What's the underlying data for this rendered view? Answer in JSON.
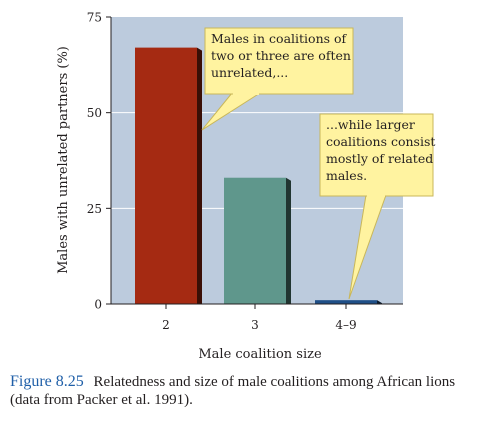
{
  "chart_data": {
    "type": "bar",
    "categories": [
      "2",
      "3",
      "4–9"
    ],
    "values": [
      67,
      33,
      1
    ],
    "ylabel": "Males with unrelated partners (%)",
    "xlabel": "Male coalition size",
    "ylim": [
      0,
      75
    ],
    "yticks": [
      "0",
      "25",
      "50",
      "75"
    ],
    "grid": true,
    "colors": [
      "#a52a12",
      "#5f978c",
      "#1f4f87"
    ],
    "background": "#bccbdd",
    "annotations": [
      {
        "lines": [
          "Males in coalitions of",
          "two or three are often",
          "unrelated,..."
        ]
      },
      {
        "lines": [
          "...while larger",
          "coalitions consist",
          "mostly of related",
          "males."
        ]
      }
    ]
  },
  "caption": {
    "label": "Figure 8.25",
    "text": "Relatedness and size of male coalitions among African lions (data from Packer et al. 1991)."
  }
}
